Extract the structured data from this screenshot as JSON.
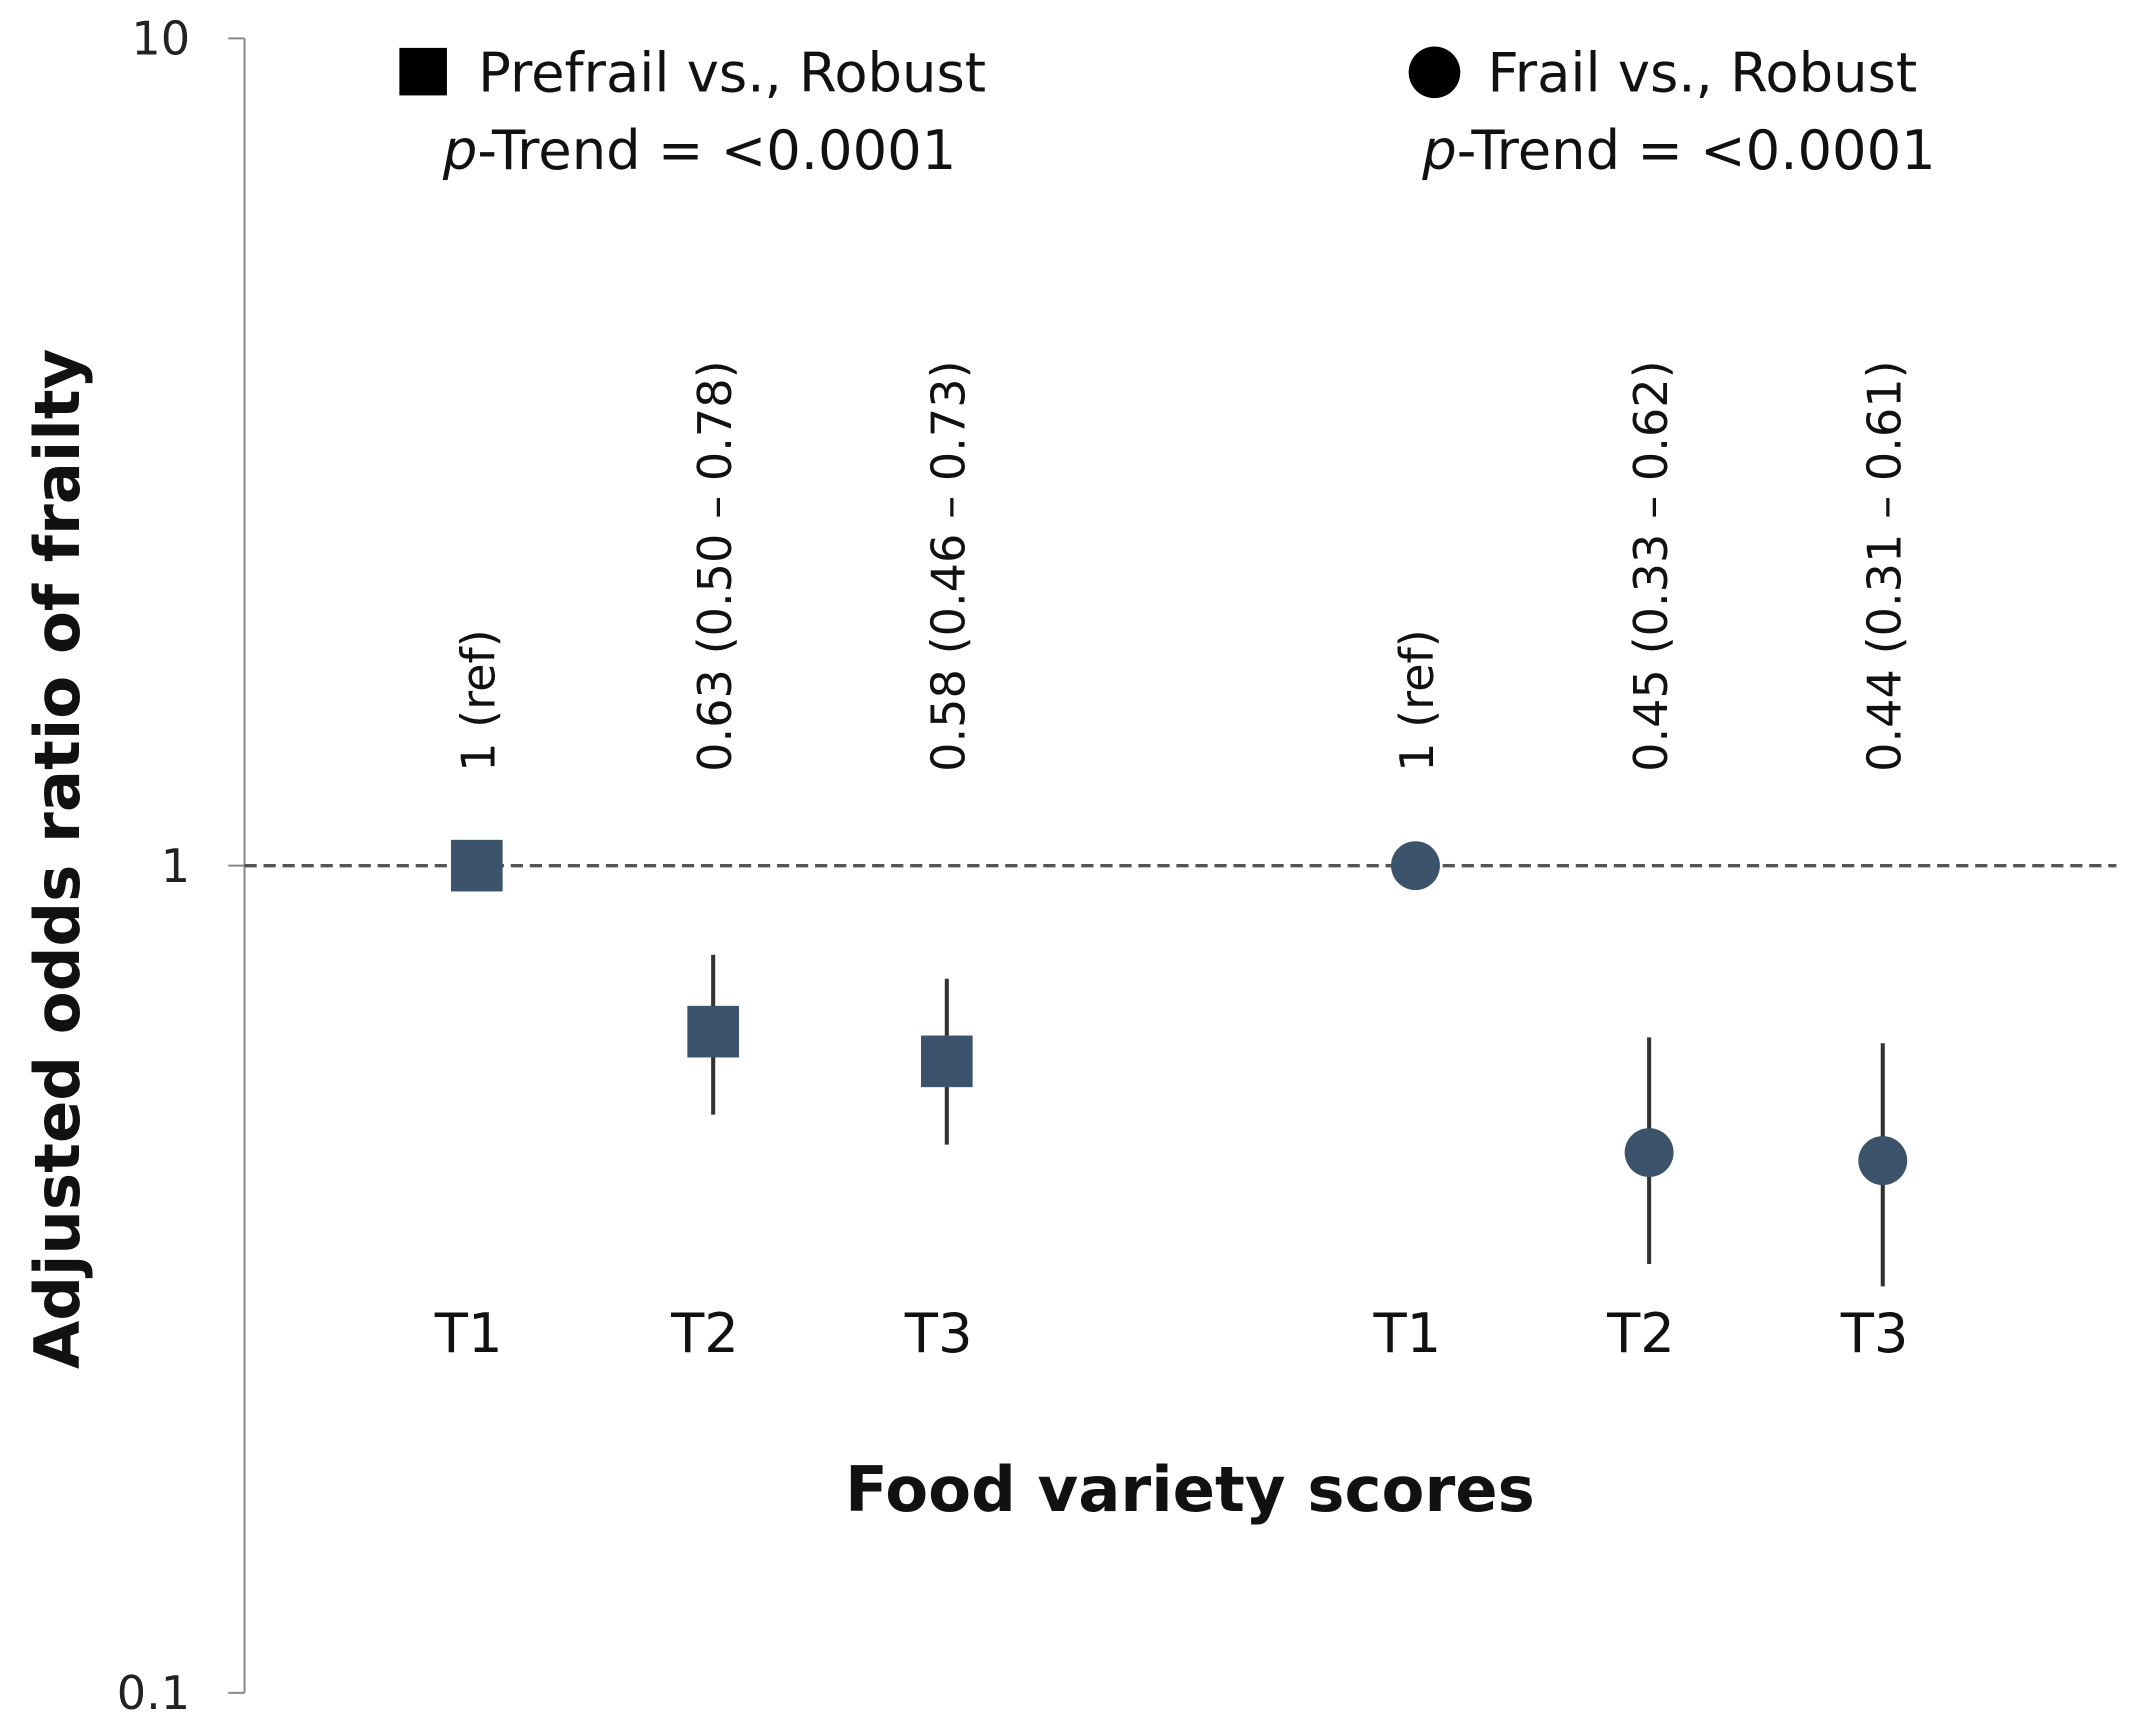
{
  "chart_data": {
    "type": "scatter",
    "xlabel": "Food variety scores",
    "ylabel": "Adjusted odds ratio of frailty",
    "yscale": "log",
    "ylim": [
      0.1,
      10
    ],
    "yticks": [
      "0.1",
      "1",
      "10"
    ],
    "reference_line": 1,
    "marker_color": "#3b536b",
    "groups": [
      {
        "name": "Prefrail vs., Robust",
        "marker": "square",
        "p_trend_label": "p",
        "p_trend_text": "-Trend  =  <0.0001",
        "categories": [
          "T1",
          "T2",
          "T3"
        ],
        "or": [
          1,
          0.63,
          0.58
        ],
        "ci_low": [
          null,
          0.5,
          0.46
        ],
        "ci_high": [
          null,
          0.78,
          0.73
        ],
        "labels": [
          "1  (ref)",
          "0.63 (0.50 – 0.78)",
          "0.58 (0.46 – 0.73)"
        ]
      },
      {
        "name": "Frail vs., Robust",
        "marker": "circle",
        "p_trend_label": "p",
        "p_trend_text": "-Trend  =  <0.0001",
        "categories": [
          "T1",
          "T2",
          "T3"
        ],
        "or": [
          1,
          0.45,
          0.44
        ],
        "ci_low": [
          null,
          0.33,
          0.31
        ],
        "ci_high": [
          null,
          0.62,
          0.61
        ],
        "labels": [
          "1  (ref)",
          "0.45 (0.33 – 0.62)",
          "0.44 (0.31 – 0.61)"
        ]
      }
    ]
  }
}
